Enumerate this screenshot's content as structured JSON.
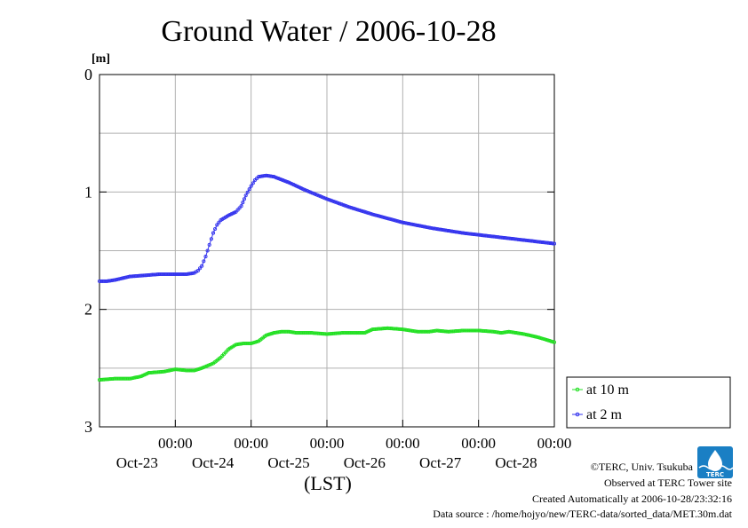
{
  "chart_data": {
    "type": "line",
    "title": "Ground Water / 2006-10-28",
    "ylabel": "[m]",
    "xlabel": "(LST)",
    "ylim": [
      0,
      3
    ],
    "y_inverted": true,
    "yticks": [
      "0",
      "1",
      "2",
      "3"
    ],
    "x_domain_days": [
      22.0,
      28.0
    ],
    "x_ticks": [
      {
        "time": "00:00",
        "day": "Oct-23"
      },
      {
        "time": "00:00",
        "day": "Oct-24"
      },
      {
        "time": "00:00",
        "day": "Oct-25"
      },
      {
        "time": "00:00",
        "day": "Oct-26"
      },
      {
        "time": "00:00",
        "day": "Oct-27"
      },
      {
        "time": "00:00",
        "day": "Oct-28"
      }
    ],
    "grid": true,
    "legend_position": "right-bottom",
    "series": [
      {
        "name": "at 10 m",
        "color": "#22e022",
        "points": [
          [
            22.0,
            2.6
          ],
          [
            22.2,
            2.59
          ],
          [
            22.4,
            2.59
          ],
          [
            22.55,
            2.57
          ],
          [
            22.65,
            2.54
          ],
          [
            22.85,
            2.53
          ],
          [
            23.0,
            2.51
          ],
          [
            23.15,
            2.52
          ],
          [
            23.25,
            2.52
          ],
          [
            23.35,
            2.5
          ],
          [
            23.5,
            2.46
          ],
          [
            23.6,
            2.41
          ],
          [
            23.7,
            2.34
          ],
          [
            23.8,
            2.3
          ],
          [
            23.9,
            2.29
          ],
          [
            24.0,
            2.29
          ],
          [
            24.1,
            2.27
          ],
          [
            24.2,
            2.22
          ],
          [
            24.3,
            2.2
          ],
          [
            24.4,
            2.19
          ],
          [
            24.5,
            2.19
          ],
          [
            24.6,
            2.2
          ],
          [
            24.8,
            2.2
          ],
          [
            25.0,
            2.21
          ],
          [
            25.2,
            2.2
          ],
          [
            25.5,
            2.2
          ],
          [
            25.6,
            2.17
          ],
          [
            25.8,
            2.16
          ],
          [
            26.0,
            2.17
          ],
          [
            26.1,
            2.18
          ],
          [
            26.2,
            2.19
          ],
          [
            26.35,
            2.19
          ],
          [
            26.45,
            2.18
          ],
          [
            26.6,
            2.19
          ],
          [
            26.8,
            2.18
          ],
          [
            27.0,
            2.18
          ],
          [
            27.2,
            2.19
          ],
          [
            27.3,
            2.2
          ],
          [
            27.4,
            2.19
          ],
          [
            27.5,
            2.2
          ],
          [
            27.6,
            2.21
          ],
          [
            27.8,
            2.24
          ],
          [
            28.0,
            2.28
          ]
        ]
      },
      {
        "name": "at 2 m",
        "color": "#3333ee",
        "points": [
          [
            22.0,
            1.76
          ],
          [
            22.1,
            1.76
          ],
          [
            22.2,
            1.75
          ],
          [
            22.4,
            1.72
          ],
          [
            22.6,
            1.71
          ],
          [
            22.8,
            1.7
          ],
          [
            23.0,
            1.7
          ],
          [
            23.15,
            1.7
          ],
          [
            23.25,
            1.69
          ],
          [
            23.3,
            1.67
          ],
          [
            23.35,
            1.63
          ],
          [
            23.4,
            1.55
          ],
          [
            23.45,
            1.45
          ],
          [
            23.5,
            1.35
          ],
          [
            23.55,
            1.28
          ],
          [
            23.6,
            1.24
          ],
          [
            23.7,
            1.2
          ],
          [
            23.8,
            1.17
          ],
          [
            23.87,
            1.12
          ],
          [
            23.93,
            1.03
          ],
          [
            24.0,
            0.95
          ],
          [
            24.05,
            0.9
          ],
          [
            24.1,
            0.87
          ],
          [
            24.2,
            0.86
          ],
          [
            24.3,
            0.87
          ],
          [
            24.5,
            0.92
          ],
          [
            24.7,
            0.98
          ],
          [
            25.0,
            1.06
          ],
          [
            25.3,
            1.13
          ],
          [
            25.6,
            1.19
          ],
          [
            26.0,
            1.26
          ],
          [
            26.4,
            1.31
          ],
          [
            26.8,
            1.35
          ],
          [
            27.2,
            1.38
          ],
          [
            27.6,
            1.41
          ],
          [
            28.0,
            1.44
          ]
        ]
      }
    ]
  },
  "credits": {
    "copyright": "©TERC, Univ. Tsukuba",
    "observed": "Observed at TERC Tower site",
    "created": "Created Automatically at 2006-10-28/23:32:16",
    "source": "Data source : /home/hojyo/new/TERC-data/sorted_data/MET.30m.dat"
  },
  "logo": {
    "text": "TERC",
    "color": "#1a7fc4"
  }
}
